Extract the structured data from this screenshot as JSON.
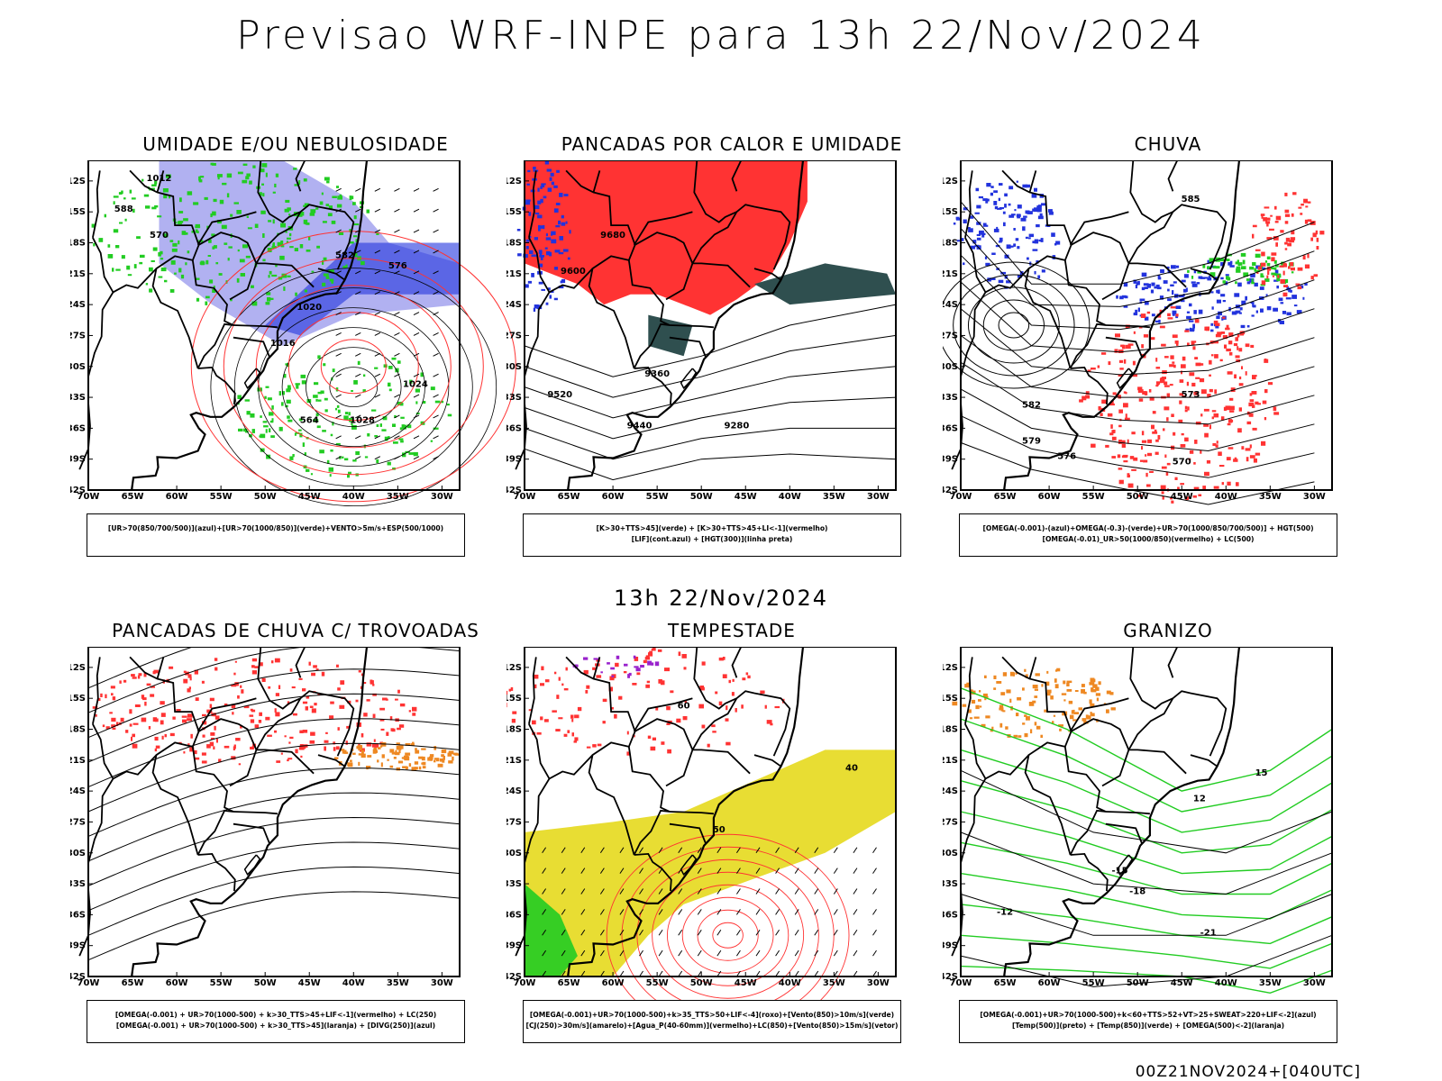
{
  "header": {
    "title": "Previsao WRF-INPE  para 13h 22/Nov/2024",
    "subtitle": "13h 22/Nov/2024",
    "run_stamp": "00Z21NOV2024+[040UTC]"
  },
  "axes": {
    "lat_labels": [
      "12S",
      "15S",
      "18S",
      "21S",
      "24S",
      "27S",
      "30S",
      "33S",
      "36S",
      "39S",
      "42S"
    ],
    "lon_labels": [
      "70W",
      "65W",
      "60W",
      "55W",
      "50W",
      "45W",
      "40W",
      "35W",
      "30W"
    ]
  },
  "colors": {
    "blue": "#2233dd",
    "green": "#22cc22",
    "red": "#ff3333",
    "orange": "#ee8822",
    "yellow": "#e8dd33",
    "lavender": "#a9a9f0",
    "darkteal": "#2f4f4f",
    "purple": "#9922cc"
  },
  "panels": [
    {
      "title": "UMIDADE E/OU NEBULOSIDADE",
      "legend": [
        "[UR>70(850/700/500)](azul)+[UR>70(1000/850)](verde)+VENTO>5m/s+ESP(500/1000)"
      ],
      "contour_labels": [
        "1012",
        "1016",
        "1020",
        "1024",
        "1028",
        "576",
        "570",
        "564",
        "582",
        "588"
      ]
    },
    {
      "title": "PANCADAS POR CALOR E UMIDADE",
      "legend": [
        "[K>30+TTS>45](verde) + [K>30+TTS>45+LI<-1](vermelho)",
        "[LIF](cont.azul) + [HGT(300)](linha preta)"
      ],
      "contour_labels": [
        "9680",
        "9600",
        "9520",
        "9440",
        "9360",
        "9280"
      ]
    },
    {
      "title": "CHUVA",
      "legend": [
        "[OMEGA(-0.001)-(azul)+OMEGA(-0.3)-(verde)+UR>70(1000/850/700/500)] + HGT(500)",
        "[OMEGA(-0.01)_UR>50(1000/850)(vermelho) + LC(500)"
      ],
      "contour_labels": [
        "585",
        "579",
        "573",
        "582",
        "576",
        "570"
      ]
    },
    {
      "title": "PANCADAS DE CHUVA C/ TROVOADAS",
      "legend": [
        "[OMEGA(-0.001) + UR>70(1000-500) + k>30_TTS>45+LIF<-1](vermelho) + LC(250)",
        "[OMEGA(-0.001) + UR>70(1000-500) + k>30_TTS>45](laranja) + [DIVG(250)](azul)"
      ],
      "contour_labels": []
    },
    {
      "title": "TEMPESTADE",
      "legend": [
        "[OMEGA(-0.001)+UR>70(1000-500)+k>35_TTS>50+LIF<-4](roxo)+[Vento(850)>10m/s](verde)",
        "[CJ(250)>30m/s](amarelo)+[Agua_P(40-60mm)](vermelho)+LC(850)+[Vento(850)>15m/s](vetor)"
      ],
      "contour_labels": [
        "60",
        "50",
        "40"
      ]
    },
    {
      "title": "GRANIZO",
      "legend": [
        "[OMEGA(-0.001)+UR>70(1000-500)+k<60+TTS>52+VT>25+SWEAT>220+LIF<-2](azul)",
        "[Temp(500)](preto) + [Temp(850)](verde) + [OMEGA(500)<-2](laranja)"
      ],
      "contour_labels": [
        "-12",
        "-15",
        "-18",
        "-21",
        "12",
        "15"
      ]
    }
  ]
}
